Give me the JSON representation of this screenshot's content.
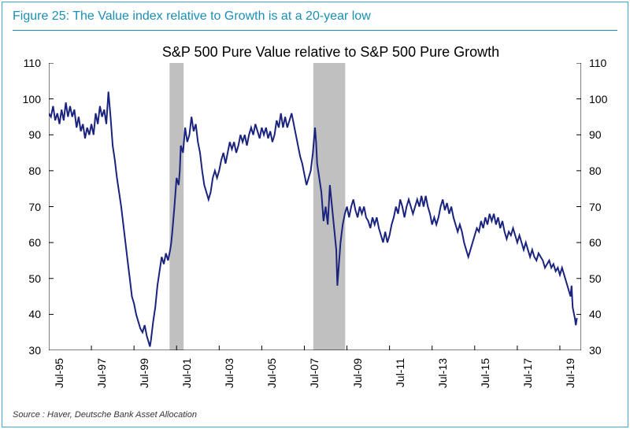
{
  "figure_label": "Figure 25: The Value index relative to Growth is at a 20-year low",
  "chart_title": "S&P 500 Pure Value  relative to S&P 500 Pure Growth",
  "source": "Source : Haver, Deutsche Bank Asset Allocation",
  "chart": {
    "type": "line",
    "ylim": [
      30,
      110
    ],
    "yticks": [
      30,
      40,
      50,
      60,
      70,
      80,
      90,
      100,
      110
    ],
    "xlim": [
      0,
      25
    ],
    "xticks": {
      "positions": [
        0,
        2,
        4,
        6,
        8,
        10,
        12,
        14,
        16,
        18,
        20,
        22,
        24
      ],
      "labels": [
        "Jul-95",
        "Jul-97",
        "Jul-99",
        "Jul-01",
        "Jul-03",
        "Jul-05",
        "Jul-07",
        "Jul-09",
        "Jul-11",
        "Jul-13",
        "Jul-15",
        "Jul-17",
        "Jul-19"
      ]
    },
    "recession_bands": [
      {
        "start": 5.67,
        "end": 6.33
      },
      {
        "start": 12.42,
        "end": 13.92
      }
    ],
    "line_color": "#1a237e",
    "line_width": 2,
    "band_color": "#c0c0c0",
    "axis_color": "#000000",
    "tick_color": "#000000",
    "background_color": "#ffffff",
    "outer_border_color": "#3fa9c9",
    "title_color": "#1a8fb5",
    "series": [
      [
        0.0,
        96
      ],
      [
        0.1,
        95
      ],
      [
        0.2,
        98
      ],
      [
        0.3,
        94
      ],
      [
        0.4,
        96
      ],
      [
        0.5,
        93
      ],
      [
        0.6,
        97
      ],
      [
        0.7,
        94
      ],
      [
        0.8,
        99
      ],
      [
        0.9,
        95
      ],
      [
        1.0,
        98
      ],
      [
        1.1,
        95
      ],
      [
        1.2,
        97
      ],
      [
        1.3,
        92
      ],
      [
        1.4,
        95
      ],
      [
        1.5,
        91
      ],
      [
        1.6,
        93
      ],
      [
        1.7,
        89
      ],
      [
        1.8,
        92
      ],
      [
        1.9,
        90
      ],
      [
        2.0,
        93
      ],
      [
        2.1,
        90
      ],
      [
        2.2,
        96
      ],
      [
        2.3,
        93
      ],
      [
        2.4,
        98
      ],
      [
        2.5,
        95
      ],
      [
        2.6,
        97
      ],
      [
        2.7,
        93
      ],
      [
        2.8,
        102
      ],
      [
        2.9,
        95
      ],
      [
        3.0,
        87
      ],
      [
        3.1,
        83
      ],
      [
        3.2,
        78
      ],
      [
        3.3,
        74
      ],
      [
        3.4,
        70
      ],
      [
        3.5,
        65
      ],
      [
        3.6,
        60
      ],
      [
        3.7,
        55
      ],
      [
        3.8,
        50
      ],
      [
        3.9,
        45
      ],
      [
        4.0,
        43
      ],
      [
        4.1,
        40
      ],
      [
        4.2,
        38
      ],
      [
        4.3,
        36
      ],
      [
        4.4,
        35
      ],
      [
        4.5,
        37
      ],
      [
        4.6,
        34
      ],
      [
        4.7,
        32
      ],
      [
        4.75,
        31
      ],
      [
        4.8,
        33
      ],
      [
        4.9,
        38
      ],
      [
        5.0,
        42
      ],
      [
        5.1,
        48
      ],
      [
        5.2,
        52
      ],
      [
        5.3,
        56
      ],
      [
        5.4,
        54
      ],
      [
        5.5,
        57
      ],
      [
        5.6,
        55
      ],
      [
        5.7,
        58
      ],
      [
        5.75,
        60
      ],
      [
        5.8,
        63
      ],
      [
        5.9,
        70
      ],
      [
        6.0,
        78
      ],
      [
        6.1,
        76
      ],
      [
        6.15,
        80
      ],
      [
        6.2,
        87
      ],
      [
        6.3,
        85
      ],
      [
        6.4,
        92
      ],
      [
        6.5,
        88
      ],
      [
        6.6,
        90
      ],
      [
        6.7,
        95
      ],
      [
        6.8,
        91
      ],
      [
        6.9,
        93
      ],
      [
        7.0,
        88
      ],
      [
        7.1,
        85
      ],
      [
        7.2,
        80
      ],
      [
        7.3,
        76
      ],
      [
        7.4,
        74
      ],
      [
        7.5,
        72
      ],
      [
        7.6,
        74
      ],
      [
        7.7,
        78
      ],
      [
        7.8,
        80
      ],
      [
        7.9,
        78
      ],
      [
        8.0,
        80
      ],
      [
        8.1,
        83
      ],
      [
        8.2,
        85
      ],
      [
        8.3,
        82
      ],
      [
        8.4,
        85
      ],
      [
        8.5,
        88
      ],
      [
        8.6,
        86
      ],
      [
        8.7,
        88
      ],
      [
        8.8,
        85
      ],
      [
        8.9,
        87
      ],
      [
        9.0,
        90
      ],
      [
        9.1,
        88
      ],
      [
        9.2,
        90
      ],
      [
        9.3,
        87
      ],
      [
        9.4,
        90
      ],
      [
        9.5,
        92
      ],
      [
        9.6,
        90
      ],
      [
        9.7,
        93
      ],
      [
        9.8,
        91
      ],
      [
        9.9,
        89
      ],
      [
        10.0,
        92
      ],
      [
        10.1,
        90
      ],
      [
        10.2,
        92
      ],
      [
        10.3,
        89
      ],
      [
        10.4,
        91
      ],
      [
        10.5,
        88
      ],
      [
        10.6,
        90
      ],
      [
        10.7,
        94
      ],
      [
        10.8,
        92
      ],
      [
        10.9,
        96
      ],
      [
        11.0,
        92
      ],
      [
        11.1,
        95
      ],
      [
        11.2,
        92
      ],
      [
        11.3,
        94
      ],
      [
        11.4,
        96
      ],
      [
        11.5,
        93
      ],
      [
        11.6,
        90
      ],
      [
        11.7,
        87
      ],
      [
        11.8,
        84
      ],
      [
        11.9,
        82
      ],
      [
        12.0,
        79
      ],
      [
        12.1,
        76
      ],
      [
        12.2,
        78
      ],
      [
        12.3,
        80
      ],
      [
        12.4,
        85
      ],
      [
        12.5,
        92
      ],
      [
        12.55,
        88
      ],
      [
        12.6,
        82
      ],
      [
        12.7,
        78
      ],
      [
        12.8,
        74
      ],
      [
        12.9,
        66
      ],
      [
        13.0,
        70
      ],
      [
        13.1,
        65
      ],
      [
        13.2,
        76
      ],
      [
        13.3,
        70
      ],
      [
        13.4,
        64
      ],
      [
        13.5,
        58
      ],
      [
        13.55,
        48
      ],
      [
        13.6,
        52
      ],
      [
        13.7,
        60
      ],
      [
        13.8,
        65
      ],
      [
        13.9,
        68
      ],
      [
        14.0,
        70
      ],
      [
        14.1,
        67
      ],
      [
        14.2,
        70
      ],
      [
        14.3,
        72
      ],
      [
        14.4,
        69
      ],
      [
        14.5,
        67
      ],
      [
        14.6,
        70
      ],
      [
        14.7,
        68
      ],
      [
        14.8,
        70
      ],
      [
        14.9,
        67
      ],
      [
        15.0,
        66
      ],
      [
        15.1,
        64
      ],
      [
        15.2,
        67
      ],
      [
        15.3,
        65
      ],
      [
        15.4,
        67
      ],
      [
        15.5,
        64
      ],
      [
        15.6,
        62
      ],
      [
        15.7,
        60
      ],
      [
        15.8,
        63
      ],
      [
        15.9,
        60
      ],
      [
        16.0,
        62
      ],
      [
        16.1,
        65
      ],
      [
        16.2,
        67
      ],
      [
        16.3,
        70
      ],
      [
        16.4,
        68
      ],
      [
        16.5,
        72
      ],
      [
        16.6,
        70
      ],
      [
        16.7,
        67
      ],
      [
        16.8,
        70
      ],
      [
        16.9,
        72
      ],
      [
        17.0,
        70
      ],
      [
        17.1,
        68
      ],
      [
        17.2,
        70
      ],
      [
        17.3,
        72
      ],
      [
        17.4,
        70
      ],
      [
        17.5,
        73
      ],
      [
        17.6,
        70
      ],
      [
        17.7,
        73
      ],
      [
        17.8,
        70
      ],
      [
        17.9,
        68
      ],
      [
        18.0,
        65
      ],
      [
        18.1,
        67
      ],
      [
        18.2,
        65
      ],
      [
        18.3,
        67
      ],
      [
        18.4,
        70
      ],
      [
        18.5,
        72
      ],
      [
        18.6,
        69
      ],
      [
        18.7,
        71
      ],
      [
        18.8,
        68
      ],
      [
        18.9,
        70
      ],
      [
        19.0,
        67
      ],
      [
        19.1,
        65
      ],
      [
        19.2,
        63
      ],
      [
        19.3,
        65
      ],
      [
        19.4,
        63
      ],
      [
        19.5,
        60
      ],
      [
        19.6,
        58
      ],
      [
        19.7,
        56
      ],
      [
        19.8,
        58
      ],
      [
        19.9,
        60
      ],
      [
        20.0,
        62
      ],
      [
        20.1,
        64
      ],
      [
        20.2,
        63
      ],
      [
        20.3,
        66
      ],
      [
        20.4,
        64
      ],
      [
        20.5,
        67
      ],
      [
        20.6,
        65
      ],
      [
        20.7,
        68
      ],
      [
        20.8,
        66
      ],
      [
        20.9,
        68
      ],
      [
        21.0,
        65
      ],
      [
        21.1,
        67
      ],
      [
        21.2,
        64
      ],
      [
        21.3,
        66
      ],
      [
        21.4,
        63
      ],
      [
        21.5,
        61
      ],
      [
        21.6,
        63
      ],
      [
        21.7,
        62
      ],
      [
        21.8,
        64
      ],
      [
        21.9,
        62
      ],
      [
        22.0,
        60
      ],
      [
        22.1,
        62
      ],
      [
        22.2,
        60
      ],
      [
        22.3,
        58
      ],
      [
        22.4,
        60
      ],
      [
        22.5,
        58
      ],
      [
        22.6,
        56
      ],
      [
        22.7,
        58
      ],
      [
        22.8,
        56
      ],
      [
        22.9,
        55
      ],
      [
        23.0,
        57
      ],
      [
        23.1,
        56
      ],
      [
        23.2,
        55
      ],
      [
        23.3,
        53
      ],
      [
        23.4,
        54
      ],
      [
        23.5,
        55
      ],
      [
        23.6,
        53
      ],
      [
        23.7,
        54
      ],
      [
        23.8,
        52
      ],
      [
        23.9,
        53
      ],
      [
        24.0,
        51
      ],
      [
        24.1,
        53
      ],
      [
        24.2,
        51
      ],
      [
        24.3,
        49
      ],
      [
        24.4,
        47
      ],
      [
        24.5,
        45
      ],
      [
        24.55,
        48
      ],
      [
        24.6,
        42
      ],
      [
        24.7,
        39
      ],
      [
        24.75,
        37
      ],
      [
        24.8,
        39
      ]
    ]
  }
}
